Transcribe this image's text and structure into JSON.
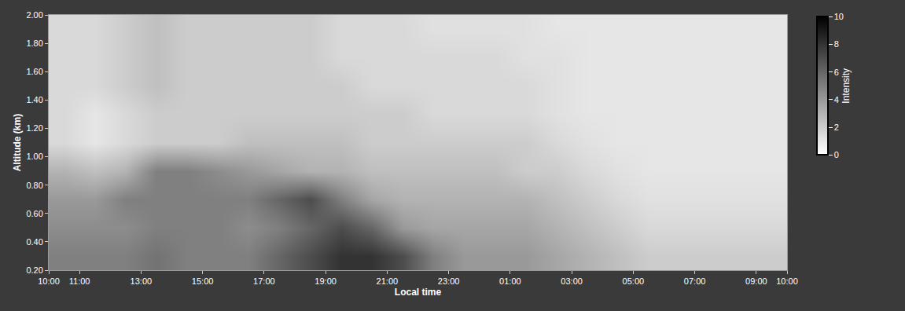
{
  "chart_data": {
    "type": "heatmap",
    "x_label": "Local time",
    "y_label": "Altitude (km)",
    "x": [
      10.5,
      11.5,
      12.5,
      13.5,
      14.5,
      15.5,
      16.5,
      17.5,
      18.5,
      19.5,
      20.5,
      21.5,
      22.5,
      23.5,
      24.5,
      25.5,
      26.5,
      27.5,
      28.5,
      29.5,
      30.5,
      31.5,
      32.5,
      33.5
    ],
    "y": [
      0.3,
      0.5,
      0.7,
      0.9,
      1.1,
      1.3,
      1.5,
      1.7,
      1.9
    ],
    "z": [
      [
        5,
        5,
        5,
        5.5,
        5,
        5,
        5,
        6,
        7,
        8,
        8,
        7,
        5,
        4,
        4,
        4,
        3.5,
        3,
        2.5,
        2,
        2,
        2,
        2,
        2
      ],
      [
        4.5,
        4.5,
        4.5,
        5,
        5,
        5,
        4.5,
        5,
        6,
        7,
        6,
        4,
        3.5,
        3.5,
        3.5,
        3.5,
        3,
        2.5,
        2,
        1.5,
        1.5,
        1.5,
        1.5,
        1.5
      ],
      [
        4,
        4,
        5,
        5,
        5,
        5,
        5,
        6,
        7,
        5,
        3.5,
        3,
        3,
        3,
        3,
        3,
        2.5,
        2,
        1.5,
        1.2,
        1.2,
        1.2,
        1.2,
        1.2
      ],
      [
        3,
        2.5,
        3,
        5,
        5,
        4.5,
        4,
        3.5,
        3,
        3,
        2.5,
        2.5,
        2.5,
        2.5,
        2.5,
        2,
        2,
        1.5,
        1.2,
        1,
        1,
        1,
        1,
        1
      ],
      [
        1.5,
        1,
        1.5,
        2,
        2,
        2,
        2.5,
        2.5,
        2.5,
        2.5,
        2,
        2,
        2,
        2,
        2,
        2,
        1.5,
        1.2,
        1,
        1,
        1,
        1,
        1,
        1
      ],
      [
        1.5,
        1,
        1.5,
        2,
        2,
        2,
        2,
        2,
        2,
        2,
        2,
        2,
        1.5,
        1.5,
        1.5,
        1.5,
        1.2,
        1,
        1,
        1,
        1,
        1,
        1,
        1
      ],
      [
        1.5,
        1.5,
        2,
        2.5,
        2,
        2,
        2,
        2,
        2,
        2,
        1.5,
        1.5,
        1.5,
        1.5,
        1.5,
        1.5,
        1.2,
        1,
        1,
        1,
        1,
        1,
        1,
        1
      ],
      [
        1.5,
        1.5,
        2,
        2.5,
        2,
        2,
        2,
        2,
        2,
        1.5,
        1.5,
        1.5,
        1.5,
        1.5,
        1.5,
        1.2,
        1.2,
        1,
        1,
        1,
        1,
        1,
        1,
        1
      ],
      [
        1.5,
        1.5,
        2,
        2.5,
        2,
        2,
        2,
        2,
        2,
        1.5,
        1.5,
        1.5,
        1.2,
        1.2,
        1.2,
        1.2,
        1,
        1,
        1,
        1,
        1,
        1,
        1,
        1
      ]
    ],
    "xlim": [
      10,
      34
    ],
    "xticks": [
      {
        "value": 10,
        "label": "10:00"
      },
      {
        "value": 11,
        "label": "11:00"
      },
      {
        "value": 13,
        "label": "13:00"
      },
      {
        "value": 15,
        "label": "15:00"
      },
      {
        "value": 17,
        "label": "17:00"
      },
      {
        "value": 19,
        "label": "19:00"
      },
      {
        "value": 21,
        "label": "21:00"
      },
      {
        "value": 23,
        "label": "23:00"
      },
      {
        "value": 25,
        "label": "01:00"
      },
      {
        "value": 27,
        "label": "03:00"
      },
      {
        "value": 29,
        "label": "05:00"
      },
      {
        "value": 31,
        "label": "07:00"
      },
      {
        "value": 33,
        "label": "09:00"
      },
      {
        "value": 34,
        "label": "10:00"
      }
    ],
    "ylim": [
      0.2,
      2.0
    ],
    "yticks": [
      {
        "value": 0.2,
        "label": "0.20"
      },
      {
        "value": 0.4,
        "label": "0.40"
      },
      {
        "value": 0.6,
        "label": "0.60"
      },
      {
        "value": 0.8,
        "label": "0.80"
      },
      {
        "value": 1.0,
        "label": "1.00"
      },
      {
        "value": 1.2,
        "label": "1.20"
      },
      {
        "value": 1.4,
        "label": "1.40"
      },
      {
        "value": 1.6,
        "label": "1.60"
      },
      {
        "value": 1.8,
        "label": "1.80"
      },
      {
        "value": 2.0,
        "label": "2.00"
      }
    ],
    "colorbar": {
      "title": "Intensity",
      "range": [
        0,
        10
      ],
      "ticks": [
        0,
        2,
        4,
        6,
        8,
        10
      ]
    },
    "colors": [
      "#ffffff",
      "#000000"
    ],
    "grid": true
  }
}
